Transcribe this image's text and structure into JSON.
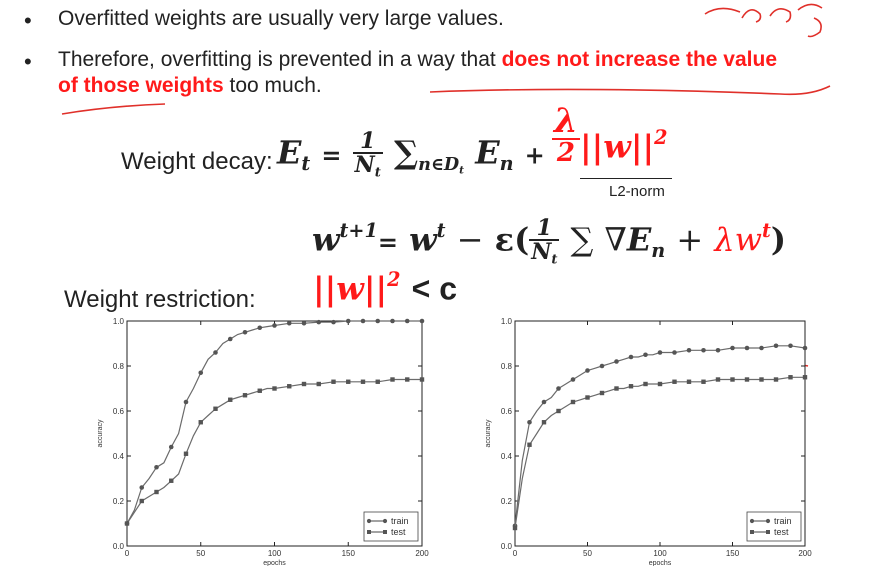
{
  "bullets": [
    {
      "text": "Overfitted weights are usually very large values."
    },
    {
      "pre": "Therefore, overfitting is prevented in a way that ",
      "highlight_line1": "does not increase the value",
      "highlight_line2": "of those weights",
      "post": " too much."
    }
  ],
  "weight_decay": {
    "label": "Weight decay:",
    "lhs_symbol": "E",
    "lhs_sub": "t",
    "frac_num": "1",
    "frac_den": "N",
    "frac_den_sub": "t",
    "sum_symbol": "∑",
    "sum_sub": "n∈D",
    "sum_sub_sub": "t",
    "term": "E",
    "term_sub": "n",
    "plus": "+",
    "lambda": "λ",
    "two": "2",
    "norm": "||w||",
    "norm_sup": "2",
    "norm_caption": "L2-norm"
  },
  "update_rule": {
    "lhs": "w",
    "lhs_sup": "t+1",
    "eq": "=",
    "w": "w",
    "w_sup": "t",
    "minus": "−",
    "eps": "ε(",
    "frac_num": "1",
    "frac_den": "N",
    "frac_den_sub": "t",
    "sum": "∑",
    "nabla": "∇",
    "grad_term": "E",
    "grad_sub": "n",
    "plus": "+",
    "red_term": "λw",
    "red_sup": "t",
    "close": ")"
  },
  "weight_restriction": {
    "label": "Weight restriction:",
    "norm": "||w||",
    "sup": "2",
    "rest": "< c"
  },
  "charts": [
    {
      "xlabel": "epochs",
      "ylabel": "accuracy",
      "ylim": [
        0.0,
        1.0
      ],
      "xlim": [
        0,
        200
      ],
      "legend": [
        "train",
        "test"
      ],
      "legend_position": "bottom-right"
    },
    {
      "xlabel": "epochs",
      "ylabel": "accuracy",
      "ylim": [
        0.0,
        1.0
      ],
      "xlim": [
        0,
        200
      ],
      "legend": [
        "train",
        "test"
      ],
      "legend_position": "bottom-right"
    }
  ],
  "chart_data": [
    {
      "type": "line",
      "xlabel": "epochs",
      "ylabel": "accuracy",
      "xlim": [
        0,
        200
      ],
      "ylim": [
        0.0,
        1.0
      ],
      "x_ticks": [
        "0",
        "50",
        "100",
        "150",
        "200"
      ],
      "y_ticks": [
        "0.0",
        "0.2",
        "0.4",
        "0.6",
        "0.8",
        "1.0"
      ],
      "legend": "bottom-right",
      "series": [
        {
          "name": "train",
          "x": [
            0,
            5,
            10,
            15,
            20,
            25,
            30,
            35,
            40,
            45,
            50,
            55,
            60,
            65,
            70,
            75,
            80,
            85,
            90,
            95,
            100,
            110,
            120,
            130,
            140,
            150,
            160,
            170,
            180,
            190,
            200
          ],
          "y": [
            0.1,
            0.16,
            0.26,
            0.3,
            0.35,
            0.37,
            0.44,
            0.5,
            0.64,
            0.7,
            0.77,
            0.83,
            0.86,
            0.9,
            0.92,
            0.94,
            0.95,
            0.96,
            0.97,
            0.975,
            0.98,
            0.99,
            0.99,
            0.995,
            0.995,
            1.0,
            1.0,
            1.0,
            1.0,
            1.0,
            1.0
          ]
        },
        {
          "name": "test",
          "x": [
            0,
            5,
            10,
            15,
            20,
            25,
            30,
            35,
            40,
            45,
            50,
            55,
            60,
            65,
            70,
            75,
            80,
            85,
            90,
            95,
            100,
            110,
            120,
            130,
            140,
            150,
            160,
            170,
            180,
            190,
            200
          ],
          "y": [
            0.1,
            0.15,
            0.2,
            0.22,
            0.24,
            0.26,
            0.29,
            0.32,
            0.41,
            0.49,
            0.55,
            0.58,
            0.61,
            0.63,
            0.65,
            0.66,
            0.67,
            0.68,
            0.69,
            0.7,
            0.7,
            0.71,
            0.72,
            0.72,
            0.73,
            0.73,
            0.73,
            0.73,
            0.74,
            0.74,
            0.74
          ]
        }
      ]
    },
    {
      "type": "line",
      "xlabel": "epochs",
      "ylabel": "accuracy",
      "xlim": [
        0,
        200
      ],
      "ylim": [
        0.0,
        1.0
      ],
      "x_ticks": [
        "0",
        "50",
        "100",
        "150",
        "200"
      ],
      "y_ticks": [
        "0.0",
        "0.2",
        "0.4",
        "0.6",
        "0.8",
        "1.0"
      ],
      "legend": "bottom-right",
      "series": [
        {
          "name": "train",
          "x": [
            0,
            5,
            10,
            15,
            20,
            25,
            30,
            35,
            40,
            45,
            50,
            55,
            60,
            65,
            70,
            75,
            80,
            85,
            90,
            95,
            100,
            110,
            120,
            130,
            140,
            150,
            160,
            170,
            180,
            190,
            200
          ],
          "y": [
            0.09,
            0.38,
            0.55,
            0.6,
            0.64,
            0.66,
            0.7,
            0.72,
            0.74,
            0.76,
            0.78,
            0.79,
            0.8,
            0.81,
            0.82,
            0.83,
            0.84,
            0.84,
            0.85,
            0.85,
            0.86,
            0.86,
            0.87,
            0.87,
            0.87,
            0.88,
            0.88,
            0.88,
            0.89,
            0.89,
            0.88
          ]
        },
        {
          "name": "test",
          "x": [
            0,
            5,
            10,
            15,
            20,
            25,
            30,
            35,
            40,
            45,
            50,
            55,
            60,
            65,
            70,
            75,
            80,
            85,
            90,
            95,
            100,
            110,
            120,
            130,
            140,
            150,
            160,
            170,
            180,
            190,
            200
          ],
          "y": [
            0.08,
            0.3,
            0.45,
            0.5,
            0.55,
            0.58,
            0.6,
            0.62,
            0.64,
            0.65,
            0.66,
            0.67,
            0.68,
            0.69,
            0.7,
            0.7,
            0.71,
            0.71,
            0.72,
            0.72,
            0.72,
            0.73,
            0.73,
            0.73,
            0.74,
            0.74,
            0.74,
            0.74,
            0.74,
            0.75,
            0.75
          ]
        }
      ]
    }
  ],
  "colors": {
    "text": "#222222",
    "accent": "#ff1a1a",
    "plot_line": "#6b6b6b"
  }
}
